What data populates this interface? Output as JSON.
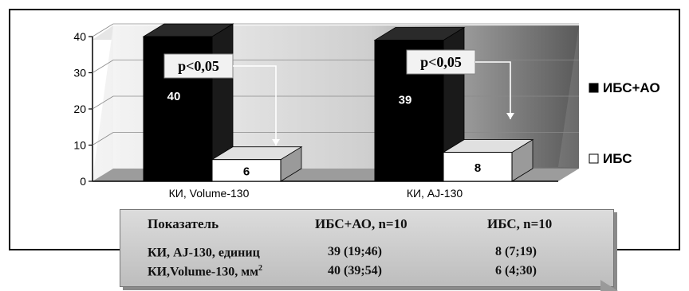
{
  "chart_data": {
    "type": "bar",
    "categories": [
      "КИ, Volume-130",
      "КИ, AJ-130"
    ],
    "series": [
      {
        "name": "ИБС+АО",
        "values": [
          40,
          39
        ],
        "color": "#000000"
      },
      {
        "name": "ИБС",
        "values": [
          6,
          8
        ],
        "color": "#ffffff"
      }
    ],
    "yticks": [
      0,
      10,
      20,
      30,
      40
    ],
    "ylim": [
      0,
      40
    ],
    "grid": true,
    "legend_position": "right",
    "annotations": [
      "p<0,05",
      "p<0,05"
    ]
  },
  "table": {
    "headers": [
      "Показатель",
      "ИБС+АО, n=10",
      "ИБС, n=10"
    ],
    "rows": [
      {
        "label": "КИ, AJ-130, единиц",
        "label_sup": "",
        "v1": "39 (19;46)",
        "v2": "8 (7;19)"
      },
      {
        "label": "КИ,Volume-130, мм",
        "label_sup": "2",
        "v1": "40 (39;54)",
        "v2": "6 (4;30)"
      }
    ]
  }
}
